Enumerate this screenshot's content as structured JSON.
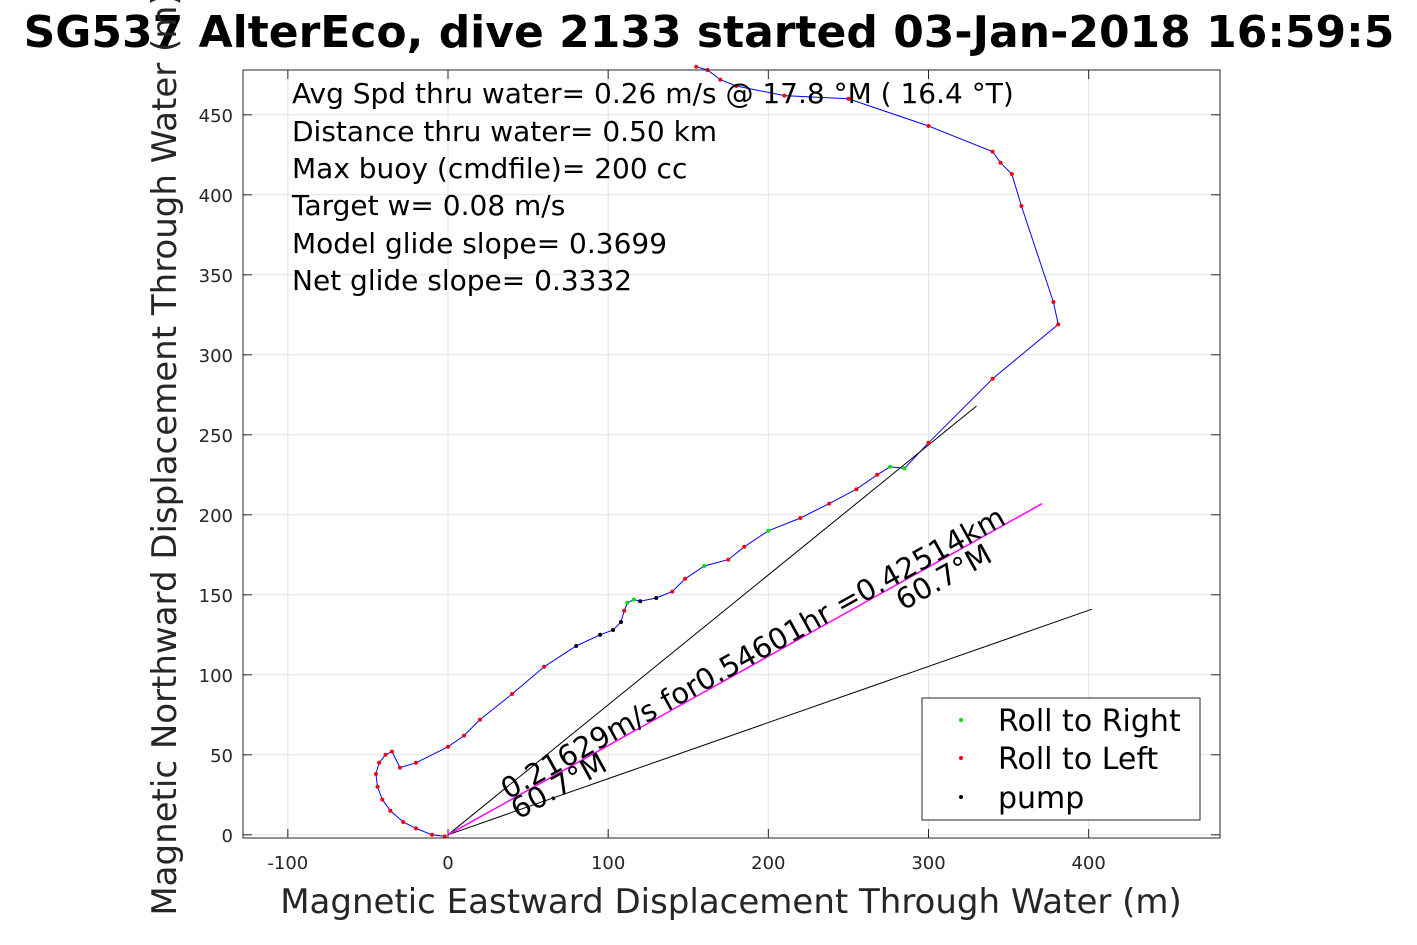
{
  "chart_data": {
    "type": "line",
    "title": "SG537 AlterEco, dive 2133 started 03-Jan-2018 16:59:5",
    "xlabel": "Magnetic Eastward Displacement Through Water (m)",
    "ylabel": "Magnetic Northward Displacement Through Water (m)",
    "xlim": [
      -128,
      482
    ],
    "ylim": [
      -2,
      478
    ],
    "xticks": [
      -100,
      0,
      100,
      200,
      300,
      400
    ],
    "yticks": [
      0,
      50,
      100,
      150,
      200,
      250,
      300,
      350,
      400,
      450
    ],
    "xtick_labels": [
      "-100",
      "0",
      "100",
      "200",
      "300",
      "400"
    ],
    "ytick_labels": [
      "0",
      "50",
      "100",
      "150",
      "200",
      "250",
      "300",
      "350",
      "400",
      "450"
    ],
    "grid": true,
    "stats": [
      "Avg Spd thru water=  0.26 m/s @  17.8 °M ( 16.4 °T)",
      "Distance thru water=  0.50 km",
      "Max buoy (cmdfile)= 200 cc",
      "Target w= 0.08 m/s",
      "Model glide slope= 0.3699",
      "Net glide slope= 0.3332"
    ],
    "annotations": [
      "0.21629m/s for0.54601hr =0.42514km",
      "60.7°M",
      "60.7°M"
    ],
    "legend": {
      "placement": "bottom-right",
      "entries": [
        {
          "label": "Roll to Right",
          "color": "#00e000"
        },
        {
          "label": "Roll to Left",
          "color": "#ff0000"
        },
        {
          "label": "pump",
          "color": "#000000"
        }
      ]
    },
    "series": [
      {
        "name": "track",
        "color": "#0000ff",
        "x": [
          -2,
          -10,
          -20,
          -28,
          -36,
          -41,
          -44,
          -45,
          -43,
          -39,
          -35,
          -30,
          -20,
          0,
          10,
          20,
          40,
          60,
          80,
          95,
          103,
          108,
          110,
          112,
          116,
          120,
          130,
          140,
          148,
          160,
          175,
          185,
          200,
          220,
          238,
          255,
          268,
          276,
          285,
          300,
          340,
          381,
          378,
          358,
          352,
          345,
          340,
          300,
          250,
          210,
          180,
          170,
          162,
          155
        ],
        "y": [
          -1,
          0,
          4,
          8,
          15,
          22,
          30,
          38,
          45,
          50,
          52,
          42,
          45,
          55,
          62,
          72,
          88,
          105,
          118,
          125,
          128,
          133,
          140,
          145,
          147,
          146,
          148,
          152,
          160,
          168,
          172,
          180,
          190,
          198,
          207,
          216,
          225,
          230,
          229,
          245,
          285,
          319,
          333,
          393,
          413,
          420,
          427,
          443,
          460,
          462,
          468,
          472,
          478,
          480
        ]
      },
      {
        "name": "model glide line",
        "color": "#000000",
        "x": [
          0,
          330
        ],
        "y": [
          0,
          268
        ]
      },
      {
        "name": "net glide line",
        "color": "#000000",
        "x": [
          0,
          402
        ],
        "y": [
          0,
          141
        ]
      },
      {
        "name": "average velocity vector",
        "color": "#ff00ff",
        "x": [
          0,
          371
        ],
        "y": [
          0,
          207
        ]
      }
    ]
  }
}
